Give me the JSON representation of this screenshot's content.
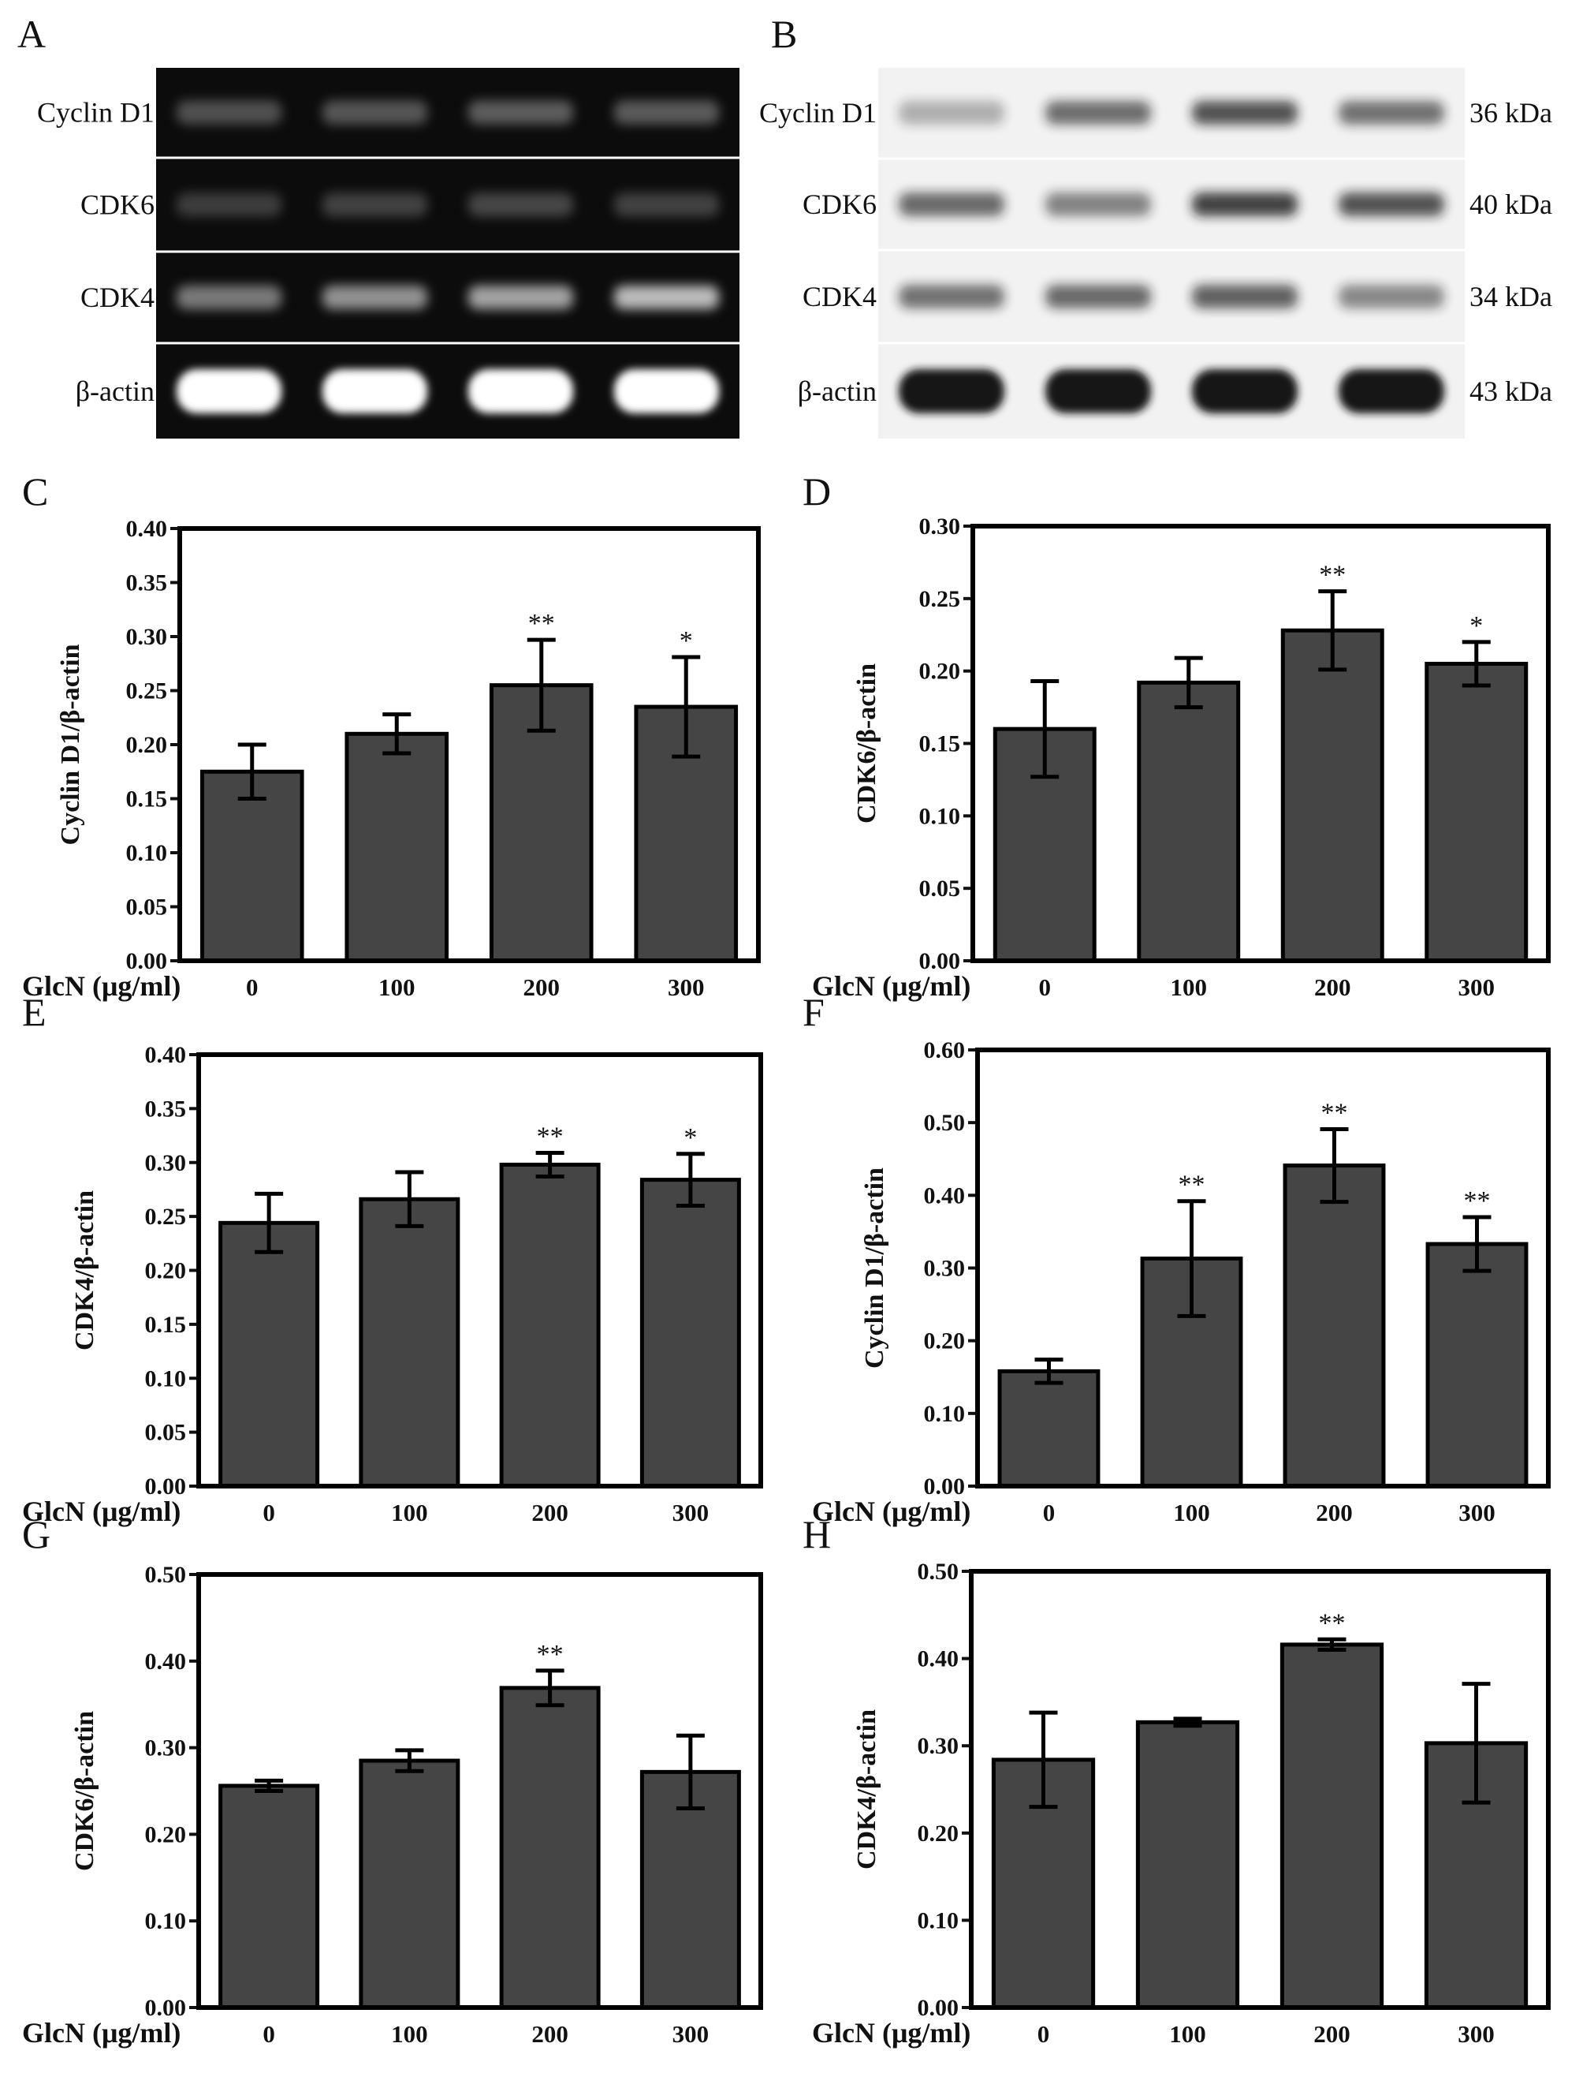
{
  "gels": [
    {
      "letter": "A",
      "background": "#0c0c0c",
      "band_color": "#ffffff",
      "rows": [
        {
          "label": "Cyclin D1",
          "intensities": [
            0.28,
            0.3,
            0.33,
            0.32
          ]
        },
        {
          "label": "CDK6",
          "intensities": [
            0.2,
            0.22,
            0.24,
            0.22
          ]
        },
        {
          "label": "CDK4",
          "intensities": [
            0.45,
            0.55,
            0.62,
            0.72
          ]
        },
        {
          "label": "β-actin",
          "intensities": [
            1.0,
            1.0,
            1.0,
            1.0
          ]
        }
      ]
    },
    {
      "letter": "B",
      "background": "#f2f2f2",
      "band_color": "#141414",
      "rows": [
        {
          "label": "Cyclin D1",
          "kda": "36 kDa",
          "intensities": [
            0.3,
            0.6,
            0.72,
            0.58
          ]
        },
        {
          "label": "CDK6",
          "kda": "40 kDa",
          "intensities": [
            0.62,
            0.5,
            0.8,
            0.72
          ]
        },
        {
          "label": "CDK4",
          "kda": "34 kDa",
          "intensities": [
            0.58,
            0.62,
            0.66,
            0.48
          ]
        },
        {
          "label": "β-actin",
          "kda": "43 kDa",
          "intensities": [
            1.0,
            1.0,
            1.0,
            1.0
          ]
        }
      ]
    }
  ],
  "x_axis_prefix": "GlcN  (μg/ml)",
  "bar_color": "#454545",
  "chart_data": [
    {
      "letter": "C",
      "type": "bar",
      "categories": [
        "0",
        "100",
        "200",
        "300"
      ],
      "values": [
        0.175,
        0.21,
        0.255,
        0.235
      ],
      "errors": [
        0.025,
        0.018,
        0.042,
        0.046
      ],
      "significance": [
        "",
        "",
        "**",
        "*"
      ],
      "ylabel": "Cyclin D1/β-actin",
      "ylim": [
        0,
        0.4
      ],
      "yticks": [
        "0.00",
        "0.05",
        "0.10",
        "0.15",
        "0.20",
        "0.25",
        "0.30",
        "0.35",
        "0.40"
      ]
    },
    {
      "letter": "D",
      "type": "bar",
      "categories": [
        "0",
        "100",
        "200",
        "300"
      ],
      "values": [
        0.16,
        0.192,
        0.228,
        0.205
      ],
      "errors": [
        0.033,
        0.017,
        0.027,
        0.015
      ],
      "significance": [
        "",
        "",
        "**",
        "*"
      ],
      "ylabel": "CDK6/β-actin",
      "ylim": [
        0,
        0.3
      ],
      "yticks": [
        "0.00",
        "0.05",
        "0.10",
        "0.15",
        "0.20",
        "0.25",
        "0.30"
      ]
    },
    {
      "letter": "E",
      "type": "bar",
      "categories": [
        "0",
        "100",
        "200",
        "300"
      ],
      "values": [
        0.244,
        0.266,
        0.298,
        0.284
      ],
      "errors": [
        0.027,
        0.025,
        0.011,
        0.024
      ],
      "significance": [
        "",
        "",
        "**",
        "*"
      ],
      "ylabel": "CDK4/β-actin",
      "ylim": [
        0,
        0.4
      ],
      "yticks": [
        "0.00",
        "0.05",
        "0.10",
        "0.15",
        "0.20",
        "0.25",
        "0.30",
        "0.35",
        "0.40"
      ]
    },
    {
      "letter": "F",
      "type": "bar",
      "categories": [
        "0",
        "100",
        "200",
        "300"
      ],
      "values": [
        0.158,
        0.313,
        0.441,
        0.333
      ],
      "errors": [
        0.016,
        0.079,
        0.05,
        0.037
      ],
      "significance": [
        "",
        "**",
        "**",
        "**"
      ],
      "ylabel": "Cyclin D1/β-actin",
      "ylim": [
        0,
        0.6
      ],
      "yticks": [
        "0.00",
        "0.10",
        "0.20",
        "0.30",
        "0.40",
        "0.50",
        "0.60"
      ]
    },
    {
      "letter": "G",
      "type": "bar",
      "categories": [
        "0",
        "100",
        "200",
        "300"
      ],
      "values": [
        0.256,
        0.285,
        0.369,
        0.272
      ],
      "errors": [
        0.006,
        0.012,
        0.02,
        0.042
      ],
      "significance": [
        "",
        "",
        "**",
        ""
      ],
      "ylabel": "CDK6/β-actin",
      "ylim": [
        0,
        0.5
      ],
      "yticks": [
        "0.00",
        "0.10",
        "0.20",
        "0.30",
        "0.40",
        "0.50"
      ]
    },
    {
      "letter": "H",
      "type": "bar",
      "categories": [
        "0",
        "100",
        "200",
        "300"
      ],
      "values": [
        0.284,
        0.327,
        0.416,
        0.303
      ],
      "errors": [
        0.054,
        0.004,
        0.006,
        0.068
      ],
      "significance": [
        "",
        "",
        "**",
        ""
      ],
      "ylabel": "CDK4/β-actin",
      "ylim": [
        0,
        0.5
      ],
      "yticks": [
        "0.00",
        "0.10",
        "0.20",
        "0.30",
        "0.40",
        "0.50"
      ]
    }
  ]
}
